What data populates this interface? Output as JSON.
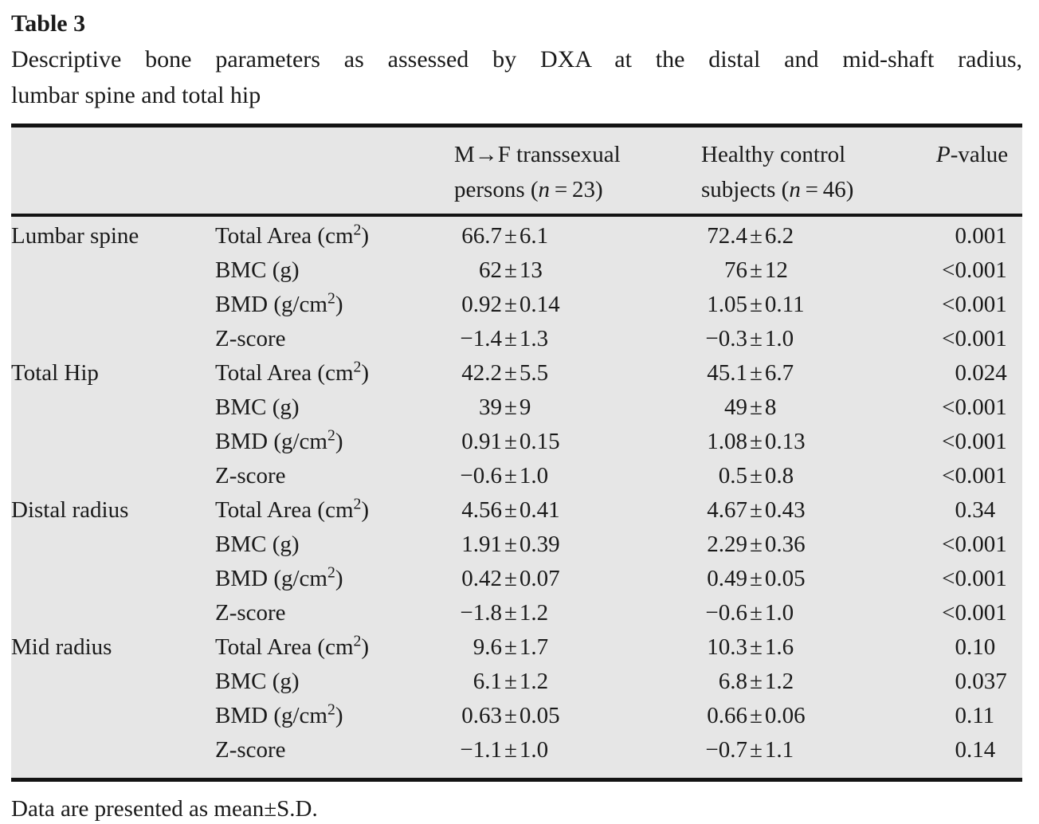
{
  "title": "Table 3",
  "caption_lines": [
    "Descriptive bone parameters as assessed by DXA at the distal and mid-shaft radius,",
    "lumbar spine and total hip"
  ],
  "table": {
    "header": {
      "region_col": "",
      "parameter_col": "",
      "transsexual_lines": [
        "M→F transsexual",
        "persons (n=23)"
      ],
      "control_lines": [
        "Healthy control",
        "subjects (n=46)"
      ],
      "p_label": "P-value"
    },
    "groups": [
      {
        "region": "Lumbar spine",
        "rows": [
          {
            "parameter": "Total Area (cm²)",
            "transsexual": "66.7±6.1",
            "control": "72.4±6.2",
            "p_value": "0.001"
          },
          {
            "parameter": "BMC (g)",
            "transsexual": "62±13",
            "control": "76±12",
            "p_value": "<0.001"
          },
          {
            "parameter": "BMD (g/cm²)",
            "transsexual": "0.92±0.14",
            "control": "1.05±0.11",
            "p_value": "<0.001"
          },
          {
            "parameter": "Z-score",
            "transsexual": "−1.4±1.3",
            "control": "−0.3±1.0",
            "p_value": "<0.001"
          }
        ]
      },
      {
        "region": "Total Hip",
        "rows": [
          {
            "parameter": "Total Area (cm²)",
            "transsexual": "42.2±5.5",
            "control": "45.1±6.7",
            "p_value": "0.024"
          },
          {
            "parameter": "BMC (g)",
            "transsexual": "39±9",
            "control": "49±8",
            "p_value": "<0.001"
          },
          {
            "parameter": "BMD (g/cm²)",
            "transsexual": "0.91±0.15",
            "control": "1.08±0.13",
            "p_value": "<0.001"
          },
          {
            "parameter": "Z-score",
            "transsexual": "−0.6±1.0",
            "control": "0.5±0.8",
            "p_value": "<0.001"
          }
        ]
      },
      {
        "region": "Distal radius",
        "rows": [
          {
            "parameter": "Total Area (cm²)",
            "transsexual": "4.56±0.41",
            "control": "4.67±0.43",
            "p_value": "0.34"
          },
          {
            "parameter": "BMC (g)",
            "transsexual": "1.91±0.39",
            "control": "2.29±0.36",
            "p_value": "<0.001"
          },
          {
            "parameter": "BMD (g/cm²)",
            "transsexual": "0.42±0.07",
            "control": "0.49±0.05",
            "p_value": "<0.001"
          },
          {
            "parameter": "Z-score",
            "transsexual": "−1.8±1.2",
            "control": "−0.6±1.0",
            "p_value": "<0.001"
          }
        ]
      },
      {
        "region": "Mid radius",
        "rows": [
          {
            "parameter": "Total Area (cm²)",
            "transsexual": "9.6±1.7",
            "control": "10.3±1.6",
            "p_value": "0.10"
          },
          {
            "parameter": "BMC (g)",
            "transsexual": "6.1±1.2",
            "control": "6.8±1.2",
            "p_value": "0.037"
          },
          {
            "parameter": "BMD (g/cm²)",
            "transsexual": "0.63±0.05",
            "control": "0.66±0.06",
            "p_value": "0.11"
          },
          {
            "parameter": "Z-score",
            "transsexual": "−1.1±1.0",
            "control": "−0.7±1.1",
            "p_value": "0.14"
          }
        ]
      }
    ]
  },
  "footnote": "Data are presented as mean±S.D.",
  "colors": {
    "table_background": "#e6e6e6",
    "rule": "#131313",
    "text": "#1a1a1a",
    "page_background": "#ffffff"
  }
}
